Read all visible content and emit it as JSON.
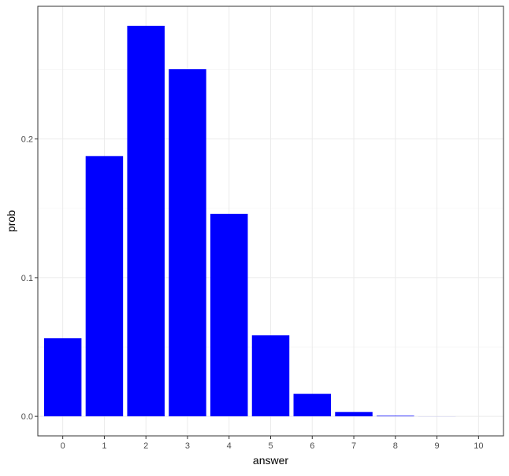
{
  "chart_data": {
    "type": "bar",
    "title": "",
    "xlabel": "answer",
    "ylabel": "prob",
    "categories": [
      "0",
      "1",
      "2",
      "3",
      "4",
      "5",
      "6",
      "7",
      "8",
      "9",
      "10"
    ],
    "values": [
      0.0563,
      0.1877,
      0.2816,
      0.2503,
      0.146,
      0.0584,
      0.0162,
      0.0031,
      0.0004,
      3e-05,
      1e-06
    ],
    "yticks": [
      0.0,
      0.1,
      0.2
    ],
    "ytick_labels": [
      "0.0",
      "0.1",
      "0.2"
    ],
    "ylim": [
      -0.0141,
      0.2957
    ],
    "grid": true,
    "legend": "none",
    "colors": {
      "bar": "#0000FF",
      "panel_border": "#333333",
      "grid_major": "#ebebeb",
      "grid_minor": "#f5f5f5"
    }
  }
}
